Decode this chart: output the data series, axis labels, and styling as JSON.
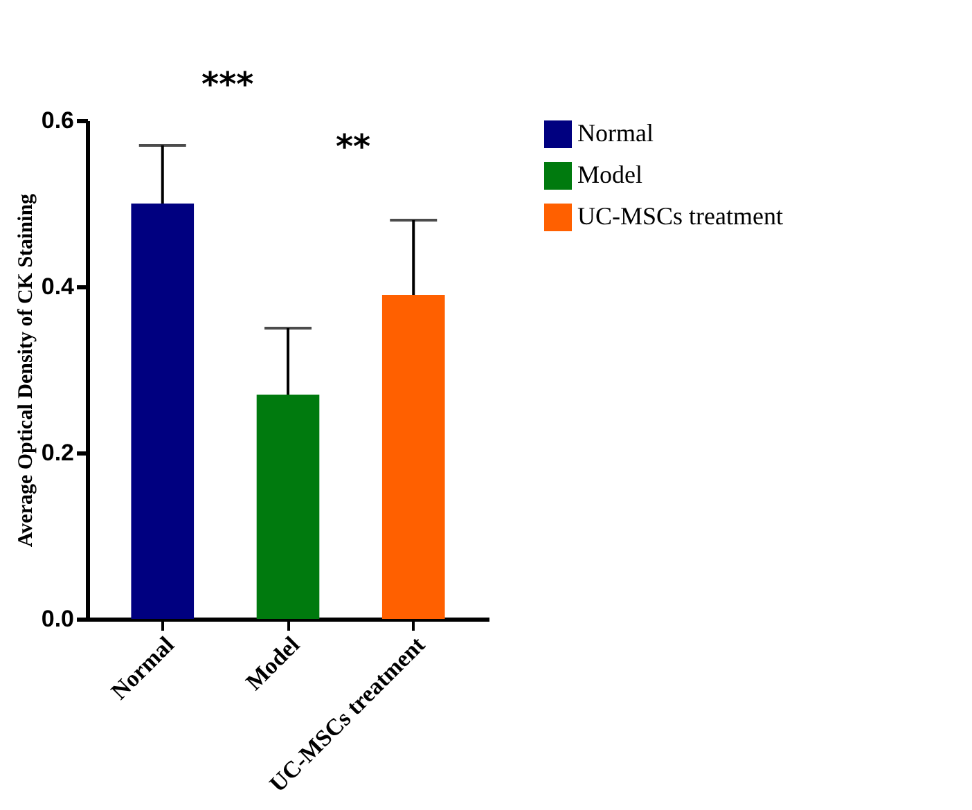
{
  "chart_data": {
    "type": "bar",
    "ylabel": "Average Optical Density of CK Staining",
    "categories": [
      "Normal",
      "Model",
      "UC-MSCs treatment"
    ],
    "series": [
      {
        "name": "Normal",
        "color": "#000080",
        "values": [
          0.5,
          null,
          null
        ],
        "errors": [
          [
            0.5,
            0.57
          ],
          null,
          null
        ]
      },
      {
        "name": "Model",
        "color": "#007a0e",
        "values": [
          null,
          0.27,
          null
        ],
        "errors": [
          null,
          [
            0.27,
            0.35
          ],
          null
        ]
      },
      {
        "name": "UC-MSCs treatment",
        "color": "#ff6000",
        "values": [
          null,
          null,
          0.39
        ],
        "errors": [
          null,
          null,
          [
            0.39,
            0.48
          ]
        ]
      }
    ],
    "ylim": [
      0,
      0.6
    ],
    "yticks": [
      {
        "value": 0,
        "label": "0.0"
      },
      {
        "value": 0.2,
        "label": "0.2"
      },
      {
        "value": 0.4,
        "label": "0.4"
      },
      {
        "value": 0.6,
        "label": "0.6"
      }
    ],
    "annotations": [
      "***",
      "**"
    ],
    "legend": "top right",
    "grid": false
  }
}
